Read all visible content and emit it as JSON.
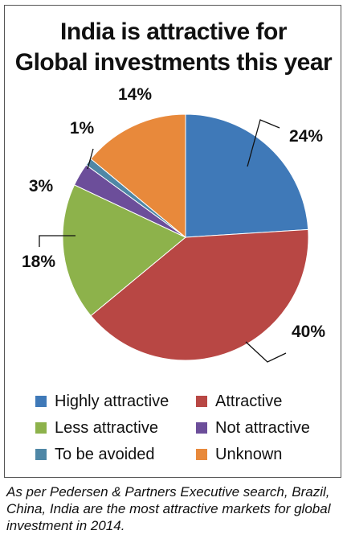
{
  "chart_data": {
    "type": "pie",
    "title_lines": [
      "India is attractive for",
      "Global investments this year"
    ],
    "slices": [
      {
        "label": "Highly attractive",
        "value": 24,
        "value_label": "24%",
        "color": "#3F79B8"
      },
      {
        "label": "Attractive",
        "value": 40,
        "value_label": "40%",
        "color": "#B84744"
      },
      {
        "label": "Less attractive",
        "value": 18,
        "value_label": "18%",
        "color": "#8DB24B"
      },
      {
        "label": "Not attractive",
        "value": 3,
        "value_label": "3%",
        "color": "#6C4E9A"
      },
      {
        "label": "To be avoided",
        "value": 1,
        "value_label": "1%",
        "color": "#4F87A6"
      },
      {
        "label": "Unknown",
        "value": 14,
        "value_label": "14%",
        "color": "#E8893B"
      }
    ],
    "legend_position": "bottom",
    "start_angle": "12 o'clock",
    "direction": "clockwise"
  },
  "caption": "As per Pedersen & Partners Executive search, Brazil, China, India are the most attractive markets for global investment in 2014."
}
